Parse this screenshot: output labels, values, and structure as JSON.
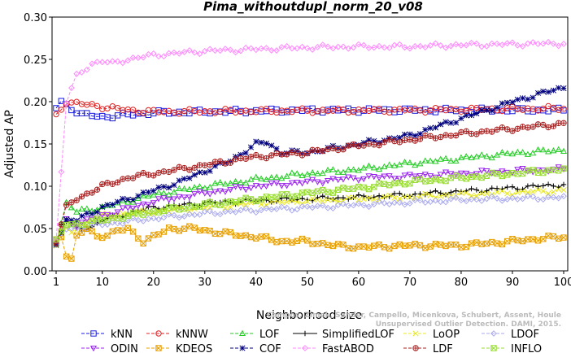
{
  "chart_data": {
    "type": "line",
    "title": "Pima_withoutdupl_norm_20_v08",
    "xlabel": "Neighborhood size",
    "ylabel": "Adjusted AP",
    "xlim": [
      1,
      100
    ],
    "ylim": [
      0,
      0.3
    ],
    "xticks": [
      1,
      10,
      20,
      30,
      40,
      50,
      60,
      70,
      80,
      90,
      100
    ],
    "yticks": [
      0,
      0.05,
      0.1,
      0.15,
      0.2,
      0.25,
      0.3
    ],
    "ytick_labels": [
      "0.00",
      "0.05",
      "0.10",
      "0.15",
      "0.20",
      "0.25",
      "0.30"
    ],
    "grid": false,
    "legend_position": "bottom",
    "series": [
      {
        "name": "kNN",
        "color": "#1a1adc",
        "marker": "square",
        "line": "dash",
        "keypoints": [
          [
            1,
            0.193
          ],
          [
            2,
            0.2
          ],
          [
            4,
            0.192
          ],
          [
            6,
            0.185
          ],
          [
            10,
            0.182
          ],
          [
            14,
            0.184
          ],
          [
            20,
            0.187
          ],
          [
            30,
            0.188
          ],
          [
            50,
            0.19
          ],
          [
            80,
            0.19
          ],
          [
            100,
            0.19
          ]
        ]
      },
      {
        "name": "kNNW",
        "color": "#e02020",
        "marker": "circle",
        "line": "dash",
        "keypoints": [
          [
            1,
            0.183
          ],
          [
            3,
            0.2
          ],
          [
            5,
            0.198
          ],
          [
            10,
            0.194
          ],
          [
            15,
            0.19
          ],
          [
            20,
            0.188
          ],
          [
            40,
            0.189
          ],
          [
            70,
            0.19
          ],
          [
            100,
            0.192
          ]
        ]
      },
      {
        "name": "LOF",
        "color": "#22cc22",
        "marker": "triangle-up",
        "line": "dash",
        "keypoints": [
          [
            1,
            0.035
          ],
          [
            3,
            0.08
          ],
          [
            5,
            0.07
          ],
          [
            10,
            0.075
          ],
          [
            20,
            0.09
          ],
          [
            30,
            0.1
          ],
          [
            40,
            0.108
          ],
          [
            50,
            0.115
          ],
          [
            60,
            0.12
          ],
          [
            70,
            0.127
          ],
          [
            80,
            0.133
          ],
          [
            90,
            0.139
          ],
          [
            100,
            0.143
          ]
        ]
      },
      {
        "name": "SimplifiedLOF",
        "color": "#000000",
        "marker": "plus",
        "line": "solid",
        "keypoints": [
          [
            1,
            0.03
          ],
          [
            2,
            0.055
          ],
          [
            3,
            0.06
          ],
          [
            5,
            0.05
          ],
          [
            8,
            0.052
          ],
          [
            10,
            0.06
          ],
          [
            15,
            0.068
          ],
          [
            20,
            0.075
          ],
          [
            30,
            0.08
          ],
          [
            40,
            0.083
          ],
          [
            50,
            0.085
          ],
          [
            60,
            0.087
          ],
          [
            70,
            0.09
          ],
          [
            80,
            0.094
          ],
          [
            90,
            0.098
          ],
          [
            100,
            0.102
          ]
        ]
      },
      {
        "name": "LoOP",
        "color": "#e8e820",
        "marker": "x",
        "line": "dash",
        "keypoints": [
          [
            1,
            0.032
          ],
          [
            2,
            0.05
          ],
          [
            4,
            0.045
          ],
          [
            6,
            0.055
          ],
          [
            10,
            0.065
          ],
          [
            20,
            0.07
          ],
          [
            30,
            0.075
          ],
          [
            40,
            0.08
          ],
          [
            60,
            0.085
          ],
          [
            80,
            0.09
          ],
          [
            100,
            0.095
          ]
        ]
      },
      {
        "name": "LDOF",
        "color": "#aaaaee",
        "marker": "diamond",
        "line": "dash",
        "keypoints": [
          [
            1,
            0.035
          ],
          [
            3,
            0.05
          ],
          [
            5,
            0.05
          ],
          [
            10,
            0.055
          ],
          [
            20,
            0.062
          ],
          [
            30,
            0.068
          ],
          [
            40,
            0.072
          ],
          [
            60,
            0.078
          ],
          [
            80,
            0.084
          ],
          [
            100,
            0.087
          ]
        ]
      },
      {
        "name": "ODIN",
        "color": "#9922ee",
        "marker": "triangle-down",
        "line": "dash",
        "keypoints": [
          [
            1,
            0.033
          ],
          [
            3,
            0.06
          ],
          [
            5,
            0.055
          ],
          [
            10,
            0.065
          ],
          [
            20,
            0.082
          ],
          [
            30,
            0.092
          ],
          [
            40,
            0.1
          ],
          [
            50,
            0.105
          ],
          [
            60,
            0.11
          ],
          [
            70,
            0.112
          ],
          [
            80,
            0.115
          ],
          [
            90,
            0.118
          ],
          [
            100,
            0.12
          ]
        ]
      },
      {
        "name": "KDEOS",
        "color": "#e8a000",
        "marker": "square-x",
        "line": "dash",
        "keypoints": [
          [
            1,
            0.035
          ],
          [
            2,
            0.04
          ],
          [
            3,
            0.02
          ],
          [
            4,
            0.015
          ],
          [
            5,
            0.04
          ],
          [
            7,
            0.05
          ],
          [
            9,
            0.04
          ],
          [
            12,
            0.045
          ],
          [
            15,
            0.05
          ],
          [
            18,
            0.035
          ],
          [
            20,
            0.04
          ],
          [
            23,
            0.05
          ],
          [
            28,
            0.05
          ],
          [
            33,
            0.045
          ],
          [
            40,
            0.04
          ],
          [
            45,
            0.035
          ],
          [
            50,
            0.035
          ],
          [
            55,
            0.03
          ],
          [
            60,
            0.028
          ],
          [
            70,
            0.03
          ],
          [
            80,
            0.03
          ],
          [
            90,
            0.035
          ],
          [
            95,
            0.038
          ],
          [
            100,
            0.04
          ]
        ]
      },
      {
        "name": "COF",
        "color": "#000080",
        "marker": "star",
        "line": "dash",
        "keypoints": [
          [
            1,
            0.033
          ],
          [
            3,
            0.06
          ],
          [
            5,
            0.06
          ],
          [
            10,
            0.075
          ],
          [
            15,
            0.085
          ],
          [
            20,
            0.095
          ],
          [
            25,
            0.105
          ],
          [
            30,
            0.118
          ],
          [
            35,
            0.13
          ],
          [
            40,
            0.15
          ],
          [
            42,
            0.152
          ],
          [
            45,
            0.14
          ],
          [
            50,
            0.14
          ],
          [
            60,
            0.15
          ],
          [
            70,
            0.16
          ],
          [
            80,
            0.18
          ],
          [
            90,
            0.2
          ],
          [
            100,
            0.217
          ]
        ]
      },
      {
        "name": "FastABOD",
        "color": "#ff88ff",
        "marker": "diamond",
        "line": "dash",
        "keypoints": [
          [
            1,
            0.035
          ],
          [
            3,
            0.2
          ],
          [
            5,
            0.23
          ],
          [
            8,
            0.245
          ],
          [
            10,
            0.248
          ],
          [
            12,
            0.245
          ],
          [
            15,
            0.25
          ],
          [
            20,
            0.255
          ],
          [
            30,
            0.26
          ],
          [
            40,
            0.262
          ],
          [
            50,
            0.264
          ],
          [
            60,
            0.265
          ],
          [
            70,
            0.265
          ],
          [
            80,
            0.267
          ],
          [
            90,
            0.268
          ],
          [
            100,
            0.269
          ]
        ]
      },
      {
        "name": "LDF",
        "color": "#aa2222",
        "marker": "circle-plus",
        "line": "dash",
        "keypoints": [
          [
            1,
            0.035
          ],
          [
            3,
            0.075
          ],
          [
            5,
            0.085
          ],
          [
            10,
            0.1
          ],
          [
            15,
            0.11
          ],
          [
            20,
            0.115
          ],
          [
            25,
            0.12
          ],
          [
            30,
            0.125
          ],
          [
            40,
            0.135
          ],
          [
            50,
            0.14
          ],
          [
            60,
            0.148
          ],
          [
            70,
            0.155
          ],
          [
            80,
            0.162
          ],
          [
            90,
            0.168
          ],
          [
            100,
            0.174
          ]
        ]
      },
      {
        "name": "INFLO",
        "color": "#99dd33",
        "marker": "square-x",
        "line": "dash",
        "keypoints": [
          [
            1,
            0.035
          ],
          [
            3,
            0.055
          ],
          [
            5,
            0.055
          ],
          [
            10,
            0.06
          ],
          [
            20,
            0.07
          ],
          [
            30,
            0.078
          ],
          [
            40,
            0.085
          ],
          [
            50,
            0.092
          ],
          [
            60,
            0.098
          ],
          [
            70,
            0.105
          ],
          [
            80,
            0.11
          ],
          [
            90,
            0.115
          ],
          [
            100,
            0.12
          ]
        ]
      }
    ]
  },
  "watermark": "Campos, Zimek, Sander, Campello, Micenkova, Schubert, Assent, Houle\nUnsupervised Outlier Detection. DAMI, 2015."
}
